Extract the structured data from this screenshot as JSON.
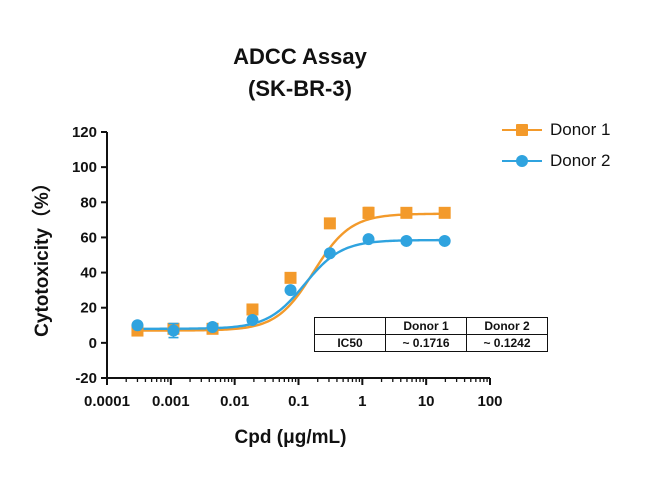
{
  "chart_data": {
    "type": "line",
    "title": "ADCC Assay",
    "subtitle": "(SK-BR-3)",
    "xlabel": "Cpd (μg/mL)",
    "ylabel": "Cytotoxicity（%）",
    "xscale": "log10",
    "xlim": [
      0.0001,
      100
    ],
    "ylim": [
      -20,
      120
    ],
    "xticks": [
      "0.0001",
      "0.001",
      "0.01",
      "0.1",
      "1",
      "10",
      "100"
    ],
    "yticks": [
      "-20",
      "0",
      "20",
      "40",
      "60",
      "80",
      "100",
      "120"
    ],
    "legend_position": "top-right",
    "series": [
      {
        "name": "Donor 1",
        "color": "#F39A2B",
        "marker": "square",
        "x": [
          0.0003,
          0.0011,
          0.0045,
          0.019,
          0.075,
          0.31,
          1.25,
          4.9,
          19.5
        ],
        "y": [
          7,
          8,
          8,
          19,
          37,
          68,
          74,
          74,
          74
        ],
        "error": [
          1,
          2,
          1,
          1,
          2,
          2,
          3,
          2,
          2
        ],
        "fit": {
          "bottom": 7,
          "top": 73.5,
          "ic50": 0.1716,
          "hill": 1.5
        }
      },
      {
        "name": "Donor 2",
        "color": "#2FA3DF",
        "marker": "circle",
        "x": [
          0.0003,
          0.0011,
          0.0045,
          0.019,
          0.075,
          0.31,
          1.25,
          4.9,
          19.5
        ],
        "y": [
          10,
          7,
          9,
          13,
          30,
          51,
          59,
          58,
          58
        ],
        "error": [
          1,
          4,
          1,
          1,
          1,
          1,
          1,
          1,
          1
        ],
        "fit": {
          "bottom": 8,
          "top": 58.5,
          "ic50": 0.1242,
          "hill": 1.5
        }
      }
    ],
    "ic50_table": {
      "headers": [
        "",
        "Donor 1",
        "Donor 2"
      ],
      "row_label": "IC50",
      "values": [
        "~ 0.1716",
        "~ 0.1242"
      ]
    }
  }
}
